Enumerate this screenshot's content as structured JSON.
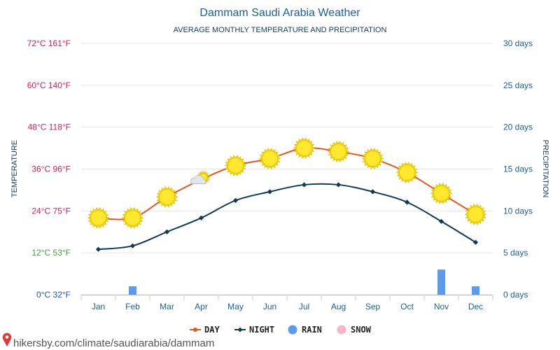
{
  "chart_data": {
    "type": "line",
    "title": "Dammam Saudi Arabia Weather",
    "subtitle": "AVERAGE MONTHLY TEMPERATURE AND PRECIPITATION",
    "categories": [
      "Jan",
      "Feb",
      "Mar",
      "Apr",
      "May",
      "Jun",
      "Jul",
      "Aug",
      "Sep",
      "Oct",
      "Nov",
      "Dec"
    ],
    "series": [
      {
        "name": "DAY",
        "color": "#e8561d",
        "values": [
          22,
          22,
          28,
          33,
          37,
          39,
          42,
          41,
          39,
          35,
          29,
          23
        ]
      },
      {
        "name": "NIGHT",
        "color": "#0f3a57",
        "values": [
          13,
          14,
          18,
          22,
          27,
          29.5,
          31.5,
          31.5,
          29.5,
          26.5,
          21,
          15
        ]
      },
      {
        "name": "RAIN",
        "color": "#5b9bef",
        "values": [
          0,
          1,
          0,
          0,
          0,
          0,
          0,
          0,
          0,
          0,
          3,
          1
        ],
        "axis": "right"
      },
      {
        "name": "SNOW",
        "color": "#f7b6c8",
        "values": [
          0,
          0,
          0,
          0,
          0,
          0,
          0,
          0,
          0,
          0,
          0,
          0
        ],
        "axis": "right"
      }
    ],
    "day_icons": [
      "sun",
      "sun",
      "sun",
      "sun-cloud",
      "sun",
      "sun",
      "sun",
      "sun",
      "sun",
      "sun",
      "sun",
      "sun"
    ],
    "ylim": [
      0,
      72
    ],
    "y2lim": [
      0,
      30
    ],
    "ylabel": "TEMPERATURE",
    "y2label": "PRECIPITATION",
    "y_ticks": [
      {
        "value": 72,
        "label": "72°C 161°F",
        "color": "#d81b60"
      },
      {
        "value": 60,
        "label": "60°C 140°F",
        "color": "#d81b60"
      },
      {
        "value": 48,
        "label": "48°C 118°F",
        "color": "#d81b60"
      },
      {
        "value": 36,
        "label": "36°C 96°F",
        "color": "#d81b60"
      },
      {
        "value": 24,
        "label": "24°C 75°F",
        "color": "#d81b60"
      },
      {
        "value": 12,
        "label": "12°C 53°F",
        "color": "#3fa13a"
      },
      {
        "value": 0,
        "label": "0°C 32°F",
        "color": "#1e4fd8"
      }
    ],
    "y2_ticks": [
      {
        "value": 30,
        "label": "30 days"
      },
      {
        "value": 25,
        "label": "25 days"
      },
      {
        "value": 20,
        "label": "20 days"
      },
      {
        "value": 15,
        "label": "15 days"
      },
      {
        "value": 10,
        "label": "10 days"
      },
      {
        "value": 5,
        "label": "5 days"
      },
      {
        "value": 0,
        "label": "0 days"
      }
    ],
    "grid": true,
    "legend": "bottom-center"
  },
  "watermark": "hikersby.com/climate/saudiarabia/dammam"
}
